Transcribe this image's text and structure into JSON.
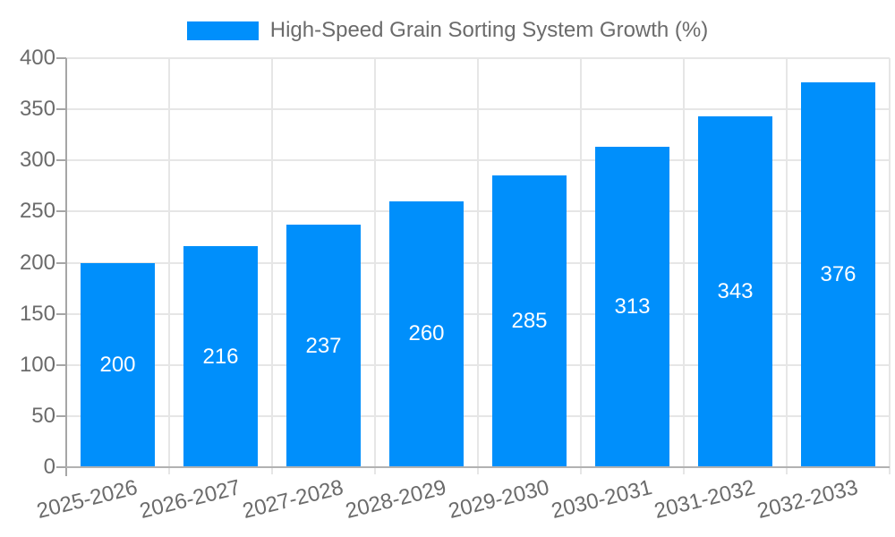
{
  "chart_data": {
    "type": "bar",
    "title": "High-Speed Grain Sorting System Growth (%)",
    "categories": [
      "2025-2026",
      "2026-2027",
      "2027-2028",
      "2028-2029",
      "2029-2030",
      "2030-2031",
      "2031-2032",
      "2032-2033"
    ],
    "values": [
      200,
      216,
      237,
      260,
      285,
      313,
      343,
      376
    ],
    "xlabel": "",
    "ylabel": "",
    "ylim": [
      0,
      400
    ],
    "yticks": [
      0,
      50,
      100,
      150,
      200,
      250,
      300,
      350,
      400
    ],
    "grid": true,
    "legend_position": "top",
    "colors": {
      "bar": "#008FFB",
      "value_label": "#ffffff",
      "axis_label": "#6b6b6b",
      "gridline": "#e6e6e6"
    }
  }
}
